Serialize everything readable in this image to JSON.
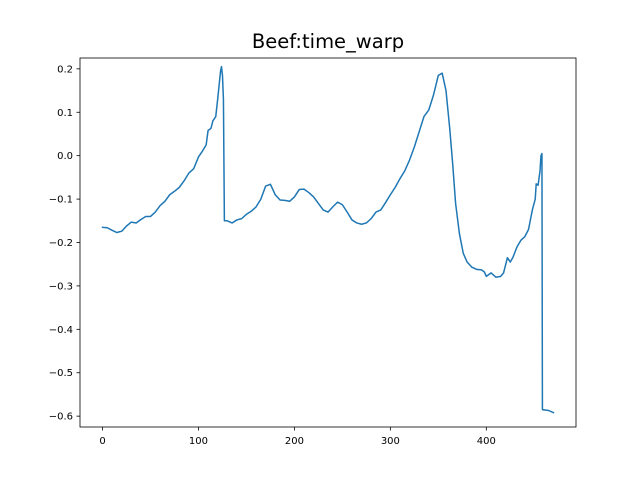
{
  "chart_data": {
    "type": "line",
    "title": "Beef:time_warp",
    "xlabel": "",
    "ylabel": "",
    "xlim": [
      -23.5,
      493.5
    ],
    "ylim": [
      -0.625,
      0.225
    ],
    "grid": false,
    "x_ticks": [
      0,
      100,
      200,
      300,
      400
    ],
    "y_ticks": [
      -0.6,
      -0.5,
      -0.4,
      -0.3,
      -0.2,
      -0.1,
      0.0,
      0.1,
      0.2
    ],
    "x_tick_labels": [
      "0",
      "100",
      "200",
      "300",
      "400"
    ],
    "y_tick_labels": [
      "−0.6",
      "−0.5",
      "−0.4",
      "−0.3",
      "−0.2",
      "−0.1",
      "0.0",
      "0.1",
      "0.2"
    ],
    "colors": {
      "line": "#1f77b4",
      "axes": "#000000",
      "background": "#ffffff"
    },
    "series": [
      {
        "points": [
          [
            0,
            -0.165
          ],
          [
            5,
            -0.166
          ],
          [
            10,
            -0.172
          ],
          [
            15,
            -0.177
          ],
          [
            20,
            -0.174
          ],
          [
            25,
            -0.162
          ],
          [
            30,
            -0.153
          ],
          [
            35,
            -0.155
          ],
          [
            40,
            -0.147
          ],
          [
            45,
            -0.14
          ],
          [
            50,
            -0.14
          ],
          [
            55,
            -0.13
          ],
          [
            60,
            -0.115
          ],
          [
            65,
            -0.105
          ],
          [
            70,
            -0.09
          ],
          [
            75,
            -0.082
          ],
          [
            80,
            -0.073
          ],
          [
            85,
            -0.058
          ],
          [
            90,
            -0.04
          ],
          [
            95,
            -0.03
          ],
          [
            100,
            -0.003
          ],
          [
            104,
            0.01
          ],
          [
            108,
            0.025
          ],
          [
            110,
            0.058
          ],
          [
            113,
            0.063
          ],
          [
            115,
            0.08
          ],
          [
            118,
            0.09
          ],
          [
            120,
            0.13
          ],
          [
            123,
            0.195
          ],
          [
            124,
            0.205
          ],
          [
            125,
            0.185
          ],
          [
            126,
            0.13
          ],
          [
            127,
            -0.15
          ],
          [
            130,
            -0.15
          ],
          [
            135,
            -0.155
          ],
          [
            140,
            -0.148
          ],
          [
            145,
            -0.145
          ],
          [
            150,
            -0.135
          ],
          [
            155,
            -0.128
          ],
          [
            160,
            -0.118
          ],
          [
            165,
            -0.1
          ],
          [
            170,
            -0.07
          ],
          [
            175,
            -0.066
          ],
          [
            180,
            -0.09
          ],
          [
            185,
            -0.102
          ],
          [
            190,
            -0.103
          ],
          [
            195,
            -0.105
          ],
          [
            200,
            -0.095
          ],
          [
            205,
            -0.078
          ],
          [
            210,
            -0.077
          ],
          [
            215,
            -0.085
          ],
          [
            220,
            -0.095
          ],
          [
            225,
            -0.11
          ],
          [
            230,
            -0.125
          ],
          [
            235,
            -0.13
          ],
          [
            240,
            -0.118
          ],
          [
            245,
            -0.107
          ],
          [
            250,
            -0.113
          ],
          [
            255,
            -0.13
          ],
          [
            260,
            -0.148
          ],
          [
            265,
            -0.155
          ],
          [
            270,
            -0.158
          ],
          [
            275,
            -0.155
          ],
          [
            280,
            -0.145
          ],
          [
            285,
            -0.13
          ],
          [
            290,
            -0.125
          ],
          [
            295,
            -0.108
          ],
          [
            300,
            -0.09
          ],
          [
            305,
            -0.073
          ],
          [
            310,
            -0.053
          ],
          [
            315,
            -0.035
          ],
          [
            320,
            -0.01
          ],
          [
            325,
            0.02
          ],
          [
            330,
            0.055
          ],
          [
            335,
            0.09
          ],
          [
            340,
            0.105
          ],
          [
            345,
            0.14
          ],
          [
            350,
            0.185
          ],
          [
            354,
            0.19
          ],
          [
            358,
            0.15
          ],
          [
            362,
            0.06
          ],
          [
            365,
            -0.02
          ],
          [
            368,
            -0.11
          ],
          [
            372,
            -0.18
          ],
          [
            376,
            -0.225
          ],
          [
            380,
            -0.245
          ],
          [
            385,
            -0.257
          ],
          [
            390,
            -0.262
          ],
          [
            395,
            -0.263
          ],
          [
            398,
            -0.268
          ],
          [
            400,
            -0.278
          ],
          [
            405,
            -0.27
          ],
          [
            410,
            -0.28
          ],
          [
            415,
            -0.278
          ],
          [
            418,
            -0.27
          ],
          [
            422,
            -0.235
          ],
          [
            425,
            -0.245
          ],
          [
            428,
            -0.233
          ],
          [
            432,
            -0.21
          ],
          [
            436,
            -0.195
          ],
          [
            440,
            -0.187
          ],
          [
            444,
            -0.17
          ],
          [
            448,
            -0.125
          ],
          [
            451,
            -0.1
          ],
          [
            452,
            -0.065
          ],
          [
            454,
            -0.068
          ],
          [
            456,
            -0.035
          ],
          [
            457,
            0.0
          ],
          [
            458,
            0.005
          ],
          [
            458.5,
            -0.585
          ],
          [
            465,
            -0.587
          ],
          [
            470,
            -0.592
          ]
        ]
      }
    ]
  }
}
